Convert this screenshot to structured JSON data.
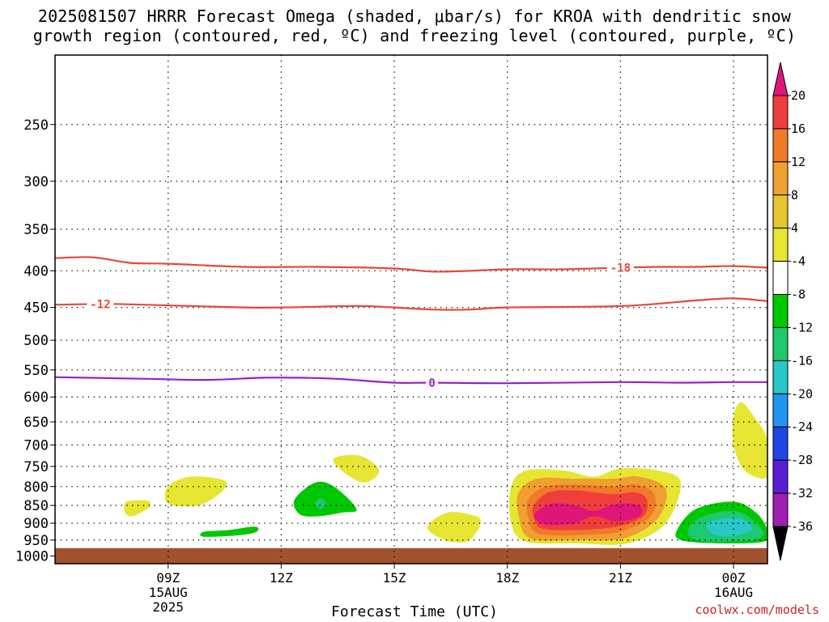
{
  "title": "2025081507 HRRR Forecast Omega (shaded, μbar/s) for KROA with dendritic snow\ngrowth region (contoured, red, ºC) and freezing level (contoured, purple, ºC)",
  "credit": "coolwx.com/models",
  "chart_data": {
    "type": "time-height cross section",
    "xlabel": "Forecast Time (UTC)",
    "x_range_hours_utc": [
      6.0,
      24.9
    ],
    "x_ticks": [
      {
        "hour": 9,
        "lines": [
          "09Z",
          "15AUG",
          "2025"
        ]
      },
      {
        "hour": 12,
        "lines": [
          "12Z"
        ]
      },
      {
        "hour": 15,
        "lines": [
          "15Z"
        ]
      },
      {
        "hour": 18,
        "lines": [
          "18Z"
        ]
      },
      {
        "hour": 21,
        "lines": [
          "21Z"
        ]
      },
      {
        "hour": 24,
        "lines": [
          "00Z",
          "16AUG"
        ]
      }
    ],
    "y_axis_pressure_hpa": [
      200,
      1025
    ],
    "y_ticks": [
      250,
      300,
      350,
      400,
      450,
      500,
      550,
      600,
      650,
      700,
      750,
      800,
      850,
      900,
      950,
      1000
    ],
    "y_grid": "dotted",
    "ground_below_hpa": 975,
    "ground_color": "#a0522d",
    "colorbar": {
      "ticks": [
        "20",
        "16",
        "12",
        "8",
        "4",
        "-4",
        "-8",
        "-12",
        "-16",
        "-20",
        "-24",
        "-28",
        "-32",
        "-36"
      ],
      "colors": [
        "#e0157a",
        "#f03d3d",
        "#f07a28",
        "#f0a030",
        "#e6c42e",
        "#e6e632",
        "#ffffff",
        "#00c800",
        "#1ec86e",
        "#28c8c8",
        "#1e96f0",
        "#1e46e6",
        "#5a1ed2",
        "#a01eb4",
        "#aaaaaa",
        "#000000"
      ]
    },
    "omega_areas": [
      {
        "level": "4",
        "color": "#e6e632",
        "pts": [
          [
            7.9,
            840
          ],
          [
            8.45,
            837
          ],
          [
            8.5,
            855
          ],
          [
            8.05,
            880
          ],
          [
            7.85,
            868
          ]
        ]
      },
      {
        "level": "4",
        "color": "#e6e632",
        "pts": [
          [
            9.0,
            800
          ],
          [
            9.6,
            775
          ],
          [
            10.5,
            785
          ],
          [
            10.4,
            815
          ],
          [
            9.8,
            850
          ],
          [
            9.0,
            845
          ]
        ]
      },
      {
        "level": "4",
        "color": "#e6e632",
        "pts": [
          [
            13.4,
            730
          ],
          [
            14.1,
            725
          ],
          [
            14.6,
            760
          ],
          [
            14.2,
            790
          ],
          [
            13.6,
            760
          ]
        ]
      },
      {
        "level": "4",
        "color": "#e6e632",
        "pts": [
          [
            15.9,
            905
          ],
          [
            16.4,
            870
          ],
          [
            17.0,
            875
          ],
          [
            17.3,
            895
          ],
          [
            17.0,
            950
          ],
          [
            16.5,
            955
          ],
          [
            16.0,
            930
          ]
        ]
      },
      {
        "level": "4",
        "color": "#e6e632",
        "pts": [
          [
            24.0,
            640
          ],
          [
            24.2,
            610
          ],
          [
            24.6,
            645
          ],
          [
            24.9,
            690
          ],
          [
            24.9,
            775
          ],
          [
            24.3,
            760
          ],
          [
            24.0,
            700
          ]
        ]
      },
      {
        "level": "4",
        "color": "#e6e632",
        "pts": [
          [
            18.1,
            800
          ],
          [
            18.5,
            760
          ],
          [
            19.5,
            760
          ],
          [
            20.3,
            775
          ],
          [
            21.0,
            755
          ],
          [
            22.0,
            760
          ],
          [
            22.6,
            790
          ],
          [
            22.2,
            900
          ],
          [
            21.2,
            960
          ],
          [
            19.8,
            960
          ],
          [
            18.5,
            955
          ],
          [
            18.1,
            900
          ]
        ]
      },
      {
        "level": "8",
        "color": "#f0a030",
        "pts": [
          [
            18.3,
            815
          ],
          [
            18.8,
            780
          ],
          [
            19.8,
            780
          ],
          [
            20.8,
            780
          ],
          [
            21.5,
            775
          ],
          [
            22.2,
            805
          ],
          [
            22.0,
            885
          ],
          [
            21.1,
            945
          ],
          [
            19.8,
            950
          ],
          [
            18.6,
            945
          ],
          [
            18.3,
            880
          ]
        ]
      },
      {
        "level": "12",
        "color": "#f07a28",
        "pts": [
          [
            18.55,
            835
          ],
          [
            19.0,
            800
          ],
          [
            19.8,
            795
          ],
          [
            20.8,
            800
          ],
          [
            21.4,
            795
          ],
          [
            21.9,
            820
          ],
          [
            21.8,
            880
          ],
          [
            21.0,
            925
          ],
          [
            19.8,
            935
          ],
          [
            18.8,
            930
          ],
          [
            18.55,
            880
          ]
        ]
      },
      {
        "level": "16",
        "color": "#f03d3d",
        "pts": [
          [
            18.7,
            850
          ],
          [
            19.1,
            815
          ],
          [
            19.8,
            810
          ],
          [
            20.8,
            820
          ],
          [
            21.4,
            815
          ],
          [
            21.7,
            835
          ],
          [
            21.6,
            880
          ],
          [
            20.9,
            910
          ],
          [
            19.8,
            920
          ],
          [
            18.9,
            915
          ],
          [
            18.7,
            880
          ]
        ]
      },
      {
        "level": "20",
        "color": "#e0157a",
        "pts": [
          [
            18.75,
            870
          ],
          [
            19.2,
            845
          ],
          [
            19.8,
            850
          ],
          [
            20.3,
            865
          ],
          [
            20.9,
            845
          ],
          [
            21.5,
            850
          ],
          [
            21.5,
            880
          ],
          [
            20.9,
            895
          ],
          [
            20.3,
            880
          ],
          [
            19.8,
            900
          ],
          [
            19.1,
            905
          ],
          [
            18.75,
            890
          ]
        ]
      },
      {
        "level": "-4",
        "color": "#00c800",
        "pts": [
          [
            9.95,
            925
          ],
          [
            10.6,
            920
          ],
          [
            11.3,
            910
          ],
          [
            11.35,
            925
          ],
          [
            10.9,
            935
          ],
          [
            9.95,
            940
          ]
        ]
      },
      {
        "level": "-4",
        "color": "#00c800",
        "pts": [
          [
            12.35,
            835
          ],
          [
            12.9,
            790
          ],
          [
            13.4,
            800
          ],
          [
            14.0,
            860
          ],
          [
            13.6,
            870
          ],
          [
            13.0,
            880
          ],
          [
            12.5,
            875
          ]
        ]
      },
      {
        "level": "-8",
        "color": "#1ec86e",
        "pts": [
          [
            12.9,
            845
          ],
          [
            13.05,
            830
          ],
          [
            13.2,
            845
          ],
          [
            13.05,
            860
          ]
        ]
      },
      {
        "level": "-4",
        "color": "#00c800",
        "pts": [
          [
            22.5,
            920
          ],
          [
            23.0,
            860
          ],
          [
            24.0,
            840
          ],
          [
            24.6,
            870
          ],
          [
            24.9,
            920
          ],
          [
            24.8,
            955
          ],
          [
            23.5,
            960
          ],
          [
            22.6,
            950
          ]
        ]
      },
      {
        "level": "-8",
        "color": "#1ec86e",
        "pts": [
          [
            22.8,
            915
          ],
          [
            23.2,
            880
          ],
          [
            24.0,
            865
          ],
          [
            24.5,
            890
          ],
          [
            24.8,
            930
          ],
          [
            24.5,
            950
          ],
          [
            23.4,
            955
          ],
          [
            22.9,
            945
          ]
        ]
      },
      {
        "level": "-12",
        "color": "#28c8c8",
        "pts": [
          [
            23.3,
            900
          ],
          [
            24.1,
            885
          ],
          [
            24.5,
            915
          ],
          [
            24.1,
            935
          ],
          [
            23.5,
            935
          ]
        ]
      }
    ],
    "contours": [
      {
        "label": "-18",
        "color": "#e8473a",
        "label_at_hour": 21.0,
        "pts": [
          [
            6.0,
            384
          ],
          [
            7.0,
            383
          ],
          [
            8.0,
            390
          ],
          [
            9.0,
            391
          ],
          [
            11.0,
            395
          ],
          [
            13.0,
            395
          ],
          [
            15.0,
            397
          ],
          [
            16.0,
            401
          ],
          [
            17.0,
            400
          ],
          [
            18.0,
            398
          ],
          [
            19.5,
            398
          ],
          [
            21.0,
            396
          ],
          [
            22.0,
            395
          ],
          [
            23.0,
            395
          ],
          [
            24.0,
            394
          ],
          [
            24.9,
            396
          ]
        ]
      },
      {
        "label": "-12",
        "color": "#e8473a",
        "label_at_hour": 7.2,
        "pts": [
          [
            6.0,
            446
          ],
          [
            7.5,
            445
          ],
          [
            9.0,
            447
          ],
          [
            11.0,
            450
          ],
          [
            12.0,
            450
          ],
          [
            14.0,
            448
          ],
          [
            15.0,
            450
          ],
          [
            16.0,
            453
          ],
          [
            17.0,
            453
          ],
          [
            18.0,
            450
          ],
          [
            21.0,
            448
          ],
          [
            23.0,
            440
          ],
          [
            24.0,
            437
          ],
          [
            24.9,
            441
          ]
        ]
      },
      {
        "label": "0",
        "color": "#9b1ec8",
        "label_at_hour": 16.0,
        "pts": [
          [
            6.0,
            563
          ],
          [
            8.5,
            566
          ],
          [
            10.0,
            568
          ],
          [
            11.5,
            564
          ],
          [
            12.5,
            564
          ],
          [
            13.5,
            566
          ],
          [
            15.0,
            573
          ],
          [
            16.0,
            573
          ],
          [
            18.0,
            574
          ],
          [
            21.0,
            572
          ],
          [
            22.5,
            573
          ],
          [
            24.0,
            572
          ],
          [
            24.9,
            572
          ]
        ]
      }
    ]
  }
}
